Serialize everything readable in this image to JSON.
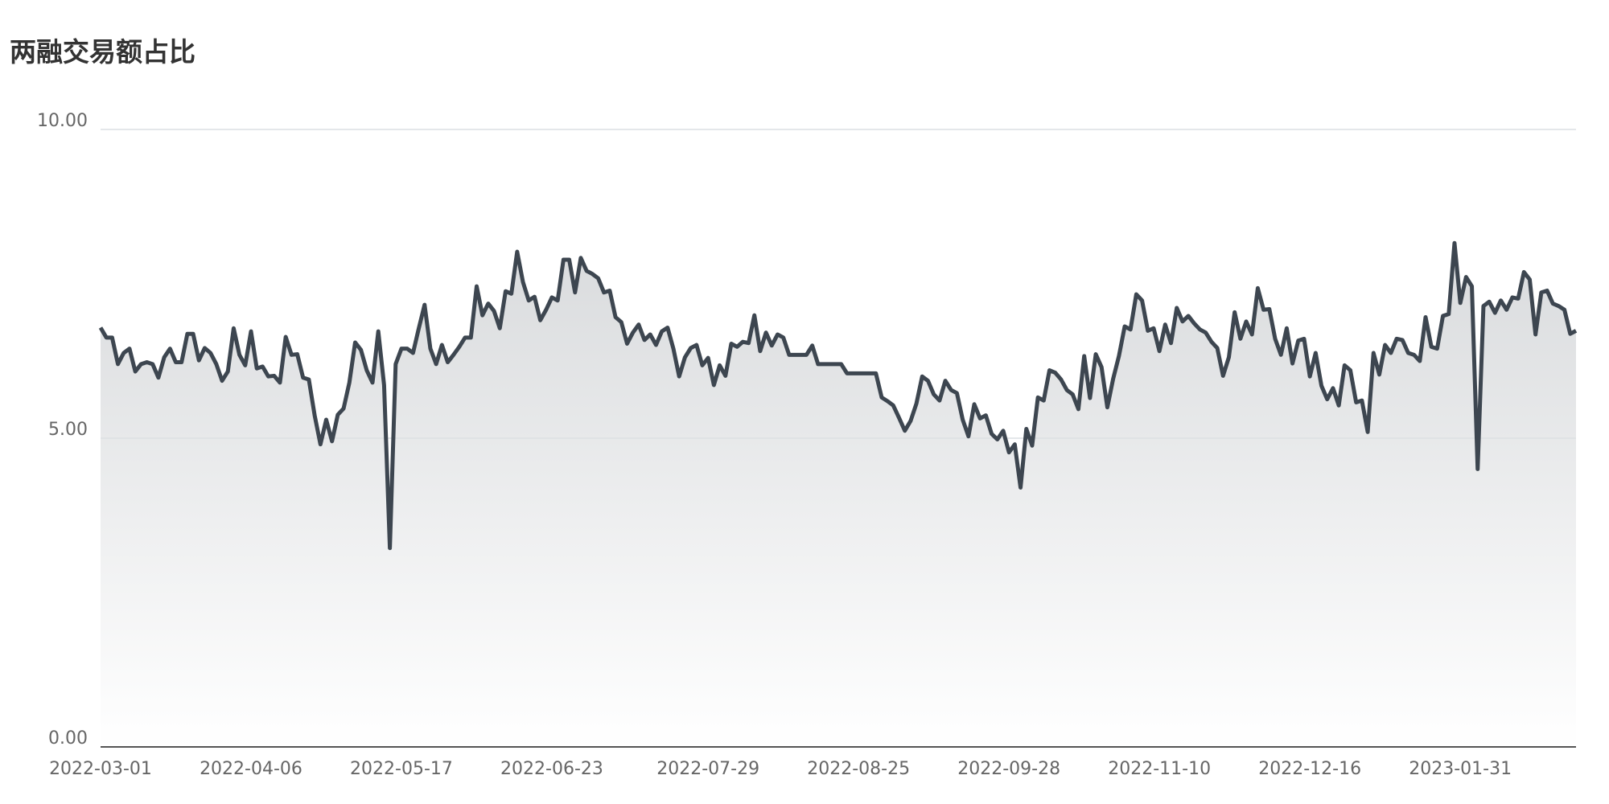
{
  "chart_data": {
    "type": "line",
    "title": "两融交易额占比",
    "categories": [
      "2022-03-01",
      null,
      null,
      null,
      null,
      null,
      null,
      null,
      null,
      null,
      null,
      null,
      null,
      null,
      null,
      null,
      null,
      null,
      null,
      null,
      null,
      null,
      null,
      null,
      null,
      null,
      "2022-04-06",
      null,
      null,
      null,
      null,
      null,
      null,
      null,
      null,
      null,
      null,
      null,
      null,
      null,
      null,
      null,
      null,
      null,
      null,
      null,
      null,
      null,
      null,
      null,
      null,
      null,
      "2022-05-17",
      null,
      null,
      null,
      null,
      null,
      null,
      null,
      null,
      null,
      null,
      null,
      null,
      null,
      null,
      null,
      null,
      null,
      null,
      null,
      null,
      null,
      null,
      null,
      null,
      null,
      "2022-06-23",
      null,
      null,
      null,
      null,
      null,
      null,
      null,
      null,
      null,
      null,
      null,
      null,
      null,
      null,
      null,
      null,
      null,
      null,
      null,
      null,
      null,
      null,
      null,
      null,
      null,
      null,
      "2022-07-29",
      null,
      null,
      null,
      null,
      null,
      null,
      null,
      null,
      null,
      null,
      null,
      null,
      null,
      null,
      null,
      null,
      null,
      null,
      null,
      null,
      null,
      null,
      null,
      null,
      null,
      "2022-08-25",
      null,
      null,
      null,
      null,
      null,
      null,
      null,
      null,
      null,
      null,
      null,
      null,
      null,
      null,
      null,
      null,
      null,
      null,
      null,
      null,
      null,
      null,
      null,
      null,
      null,
      "2022-09-28",
      null,
      null,
      null,
      null,
      null,
      null,
      null,
      null,
      null,
      null,
      null,
      null,
      null,
      null,
      null,
      null,
      null,
      null,
      null,
      null,
      null,
      null,
      null,
      null,
      null,
      "2022-11-10",
      null,
      null,
      null,
      null,
      null,
      null,
      null,
      null,
      null,
      null,
      null,
      null,
      null,
      null,
      null,
      null,
      null,
      null,
      null,
      null,
      null,
      null,
      null,
      null,
      null,
      "2022-12-16",
      null,
      null,
      null,
      null,
      null,
      null,
      null,
      null,
      null,
      null,
      null,
      null,
      null,
      null,
      null,
      null,
      null,
      null,
      null,
      null,
      null,
      null,
      null,
      null,
      null,
      "2023-01-31",
      null,
      null,
      null,
      null,
      null,
      null,
      null,
      null,
      null,
      null,
      null,
      null,
      null,
      null,
      null,
      null,
      null,
      null,
      null,
      null
    ],
    "values": [
      6.79,
      6.63,
      6.63,
      6.2,
      6.38,
      6.45,
      6.08,
      6.2,
      6.23,
      6.2,
      5.98,
      6.31,
      6.45,
      6.23,
      6.23,
      6.69,
      6.69,
      6.26,
      6.46,
      6.38,
      6.2,
      5.93,
      6.08,
      6.78,
      6.35,
      6.18,
      6.73,
      6.13,
      6.16,
      6.0,
      6.01,
      5.9,
      6.64,
      6.35,
      6.36,
      5.98,
      5.95,
      5.37,
      4.9,
      5.3,
      4.95,
      5.38,
      5.48,
      5.9,
      6.55,
      6.43,
      6.1,
      5.9,
      6.73,
      5.86,
      3.22,
      6.2,
      6.45,
      6.45,
      6.38,
      6.78,
      7.16,
      6.45,
      6.2,
      6.51,
      6.23,
      6.35,
      6.48,
      6.63,
      6.63,
      7.46,
      6.99,
      7.18,
      7.06,
      6.78,
      7.38,
      7.34,
      8.02,
      7.53,
      7.23,
      7.29,
      6.91,
      7.08,
      7.28,
      7.23,
      7.89,
      7.89,
      7.36,
      7.92,
      7.71,
      7.66,
      7.59,
      7.36,
      7.39,
      6.96,
      6.88,
      6.53,
      6.71,
      6.84,
      6.59,
      6.68,
      6.51,
      6.73,
      6.79,
      6.45,
      6.0,
      6.31,
      6.46,
      6.51,
      6.18,
      6.3,
      5.86,
      6.18,
      6.01,
      6.53,
      6.48,
      6.56,
      6.54,
      6.99,
      6.41,
      6.71,
      6.5,
      6.68,
      6.63,
      6.35,
      6.35,
      6.35,
      6.35,
      6.5,
      6.2,
      6.2,
      6.2,
      6.2,
      6.2,
      6.05,
      6.05,
      6.05,
      6.05,
      6.05,
      6.05,
      5.66,
      5.6,
      5.53,
      5.33,
      5.12,
      5.28,
      5.56,
      6.0,
      5.93,
      5.71,
      5.61,
      5.93,
      5.78,
      5.73,
      5.3,
      5.03,
      5.55,
      5.32,
      5.37,
      5.07,
      4.98,
      5.12,
      4.77,
      4.9,
      4.2,
      5.15,
      4.88,
      5.66,
      5.61,
      6.1,
      6.06,
      5.95,
      5.78,
      5.71,
      5.47,
      6.33,
      5.65,
      6.36,
      6.15,
      5.5,
      5.96,
      6.33,
      6.81,
      6.76,
      7.33,
      7.23,
      6.74,
      6.78,
      6.41,
      6.84,
      6.54,
      7.11,
      6.89,
      6.98,
      6.86,
      6.76,
      6.71,
      6.56,
      6.46,
      6.01,
      6.31,
      7.04,
      6.61,
      6.89,
      6.68,
      7.43,
      7.08,
      7.09,
      6.61,
      6.35,
      6.78,
      6.21,
      6.58,
      6.61,
      6.0,
      6.38,
      5.85,
      5.63,
      5.81,
      5.53,
      6.18,
      6.1,
      5.58,
      5.61,
      5.1,
      6.38,
      6.03,
      6.51,
      6.38,
      6.61,
      6.59,
      6.38,
      6.35,
      6.25,
      6.96,
      6.48,
      6.45,
      6.98,
      7.01,
      8.16,
      7.19,
      7.61,
      7.46,
      4.5,
      7.14,
      7.21,
      7.03,
      7.23,
      7.08,
      7.28,
      7.26,
      7.69,
      7.57,
      6.68,
      7.36,
      7.39,
      7.18,
      7.14,
      7.08,
      6.69,
      6.74
    ],
    "color": "#3d4650",
    "ylim": [
      0,
      10
    ],
    "yticks": [
      {
        "value": 0,
        "label": "0.00"
      },
      {
        "value": 5,
        "label": "5.00"
      },
      {
        "value": 10,
        "label": "10.00"
      }
    ],
    "grid": true
  }
}
